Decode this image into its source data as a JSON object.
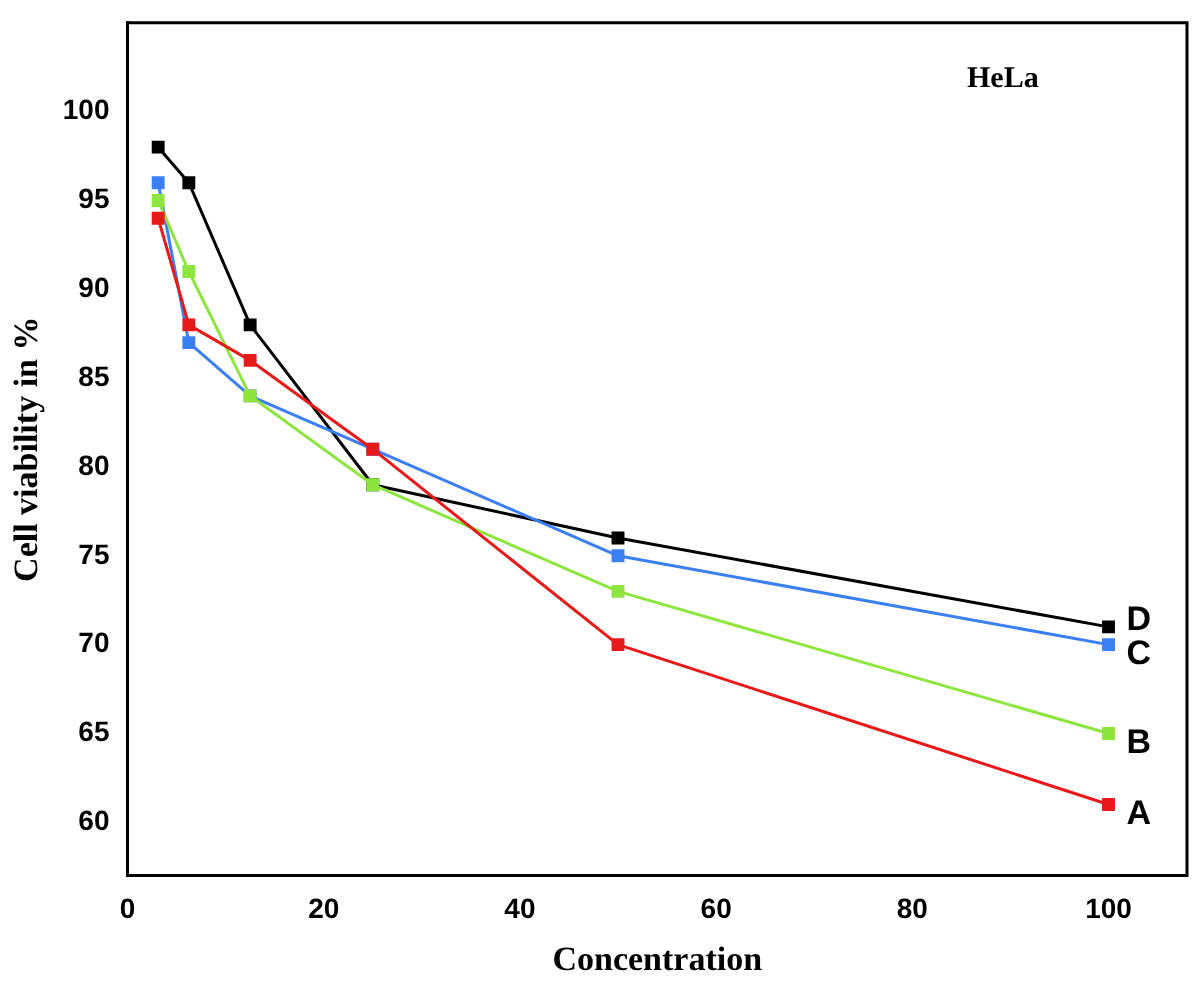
{
  "chart_data": {
    "type": "line",
    "xlabel": "Concentration",
    "ylabel": "Cell viability in %",
    "annotations": [
      "HeLa"
    ],
    "x": [
      3.125,
      6.25,
      12.5,
      25,
      50,
      100
    ],
    "series": [
      {
        "name": "A",
        "color": "#e8191a",
        "values": [
          94,
          88,
          86,
          81,
          70,
          61
        ]
      },
      {
        "name": "B",
        "color": "#8ee53f",
        "values": [
          95,
          91,
          84,
          79,
          73,
          65
        ]
      },
      {
        "name": "C",
        "color": "#3b7ff5",
        "values": [
          96,
          87,
          84,
          81,
          75,
          70
        ]
      },
      {
        "name": "D",
        "color": "#000000",
        "values": [
          98,
          96,
          88,
          79,
          76,
          71
        ]
      }
    ],
    "xlim": [
      0,
      108
    ],
    "xticks": [
      0,
      20,
      40,
      60,
      80,
      100
    ],
    "ylim": [
      57,
      105
    ],
    "yticks": [
      60,
      65,
      70,
      75,
      80,
      85,
      90,
      95,
      100
    ],
    "marker": "square",
    "line_style": "solid",
    "grid": false,
    "legend": false
  }
}
